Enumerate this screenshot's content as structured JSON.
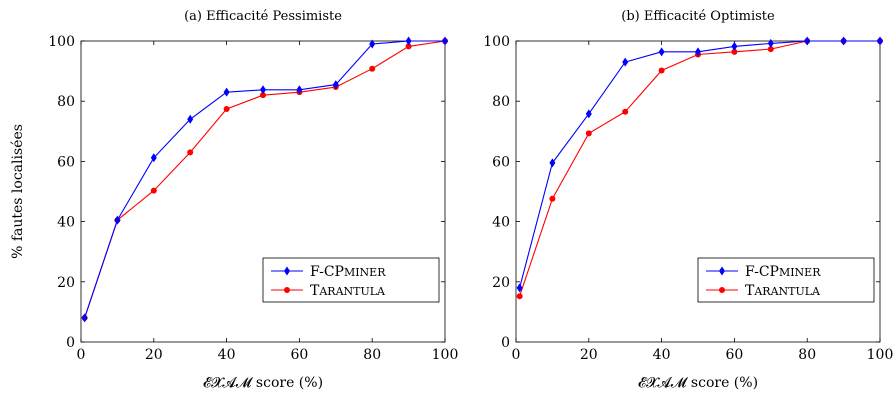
{
  "chart_data": [
    {
      "type": "line",
      "title": "(a) Efficacité Pessimiste",
      "xlabel": "𝓔𝓧𝓐𝓜 score (%)",
      "ylabel": "% fautes localisées",
      "xlim": [
        0,
        100
      ],
      "ylim": [
        0,
        100
      ],
      "xticks": [
        "0",
        "20",
        "40",
        "60",
        "80",
        "100"
      ],
      "yticks": [
        "0",
        "20",
        "40",
        "60",
        "80",
        "100"
      ],
      "x": [
        1,
        10,
        20,
        30,
        40,
        50,
        60,
        70,
        80,
        90,
        100
      ],
      "legend_position": "bottom-right",
      "series": [
        {
          "name": "F-CPminer",
          "color": "#0000ff",
          "marker": "diamond",
          "values": [
            8,
            40.5,
            61.2,
            74,
            83,
            83.8,
            83.8,
            85.5,
            99,
            100,
            100
          ]
        },
        {
          "name": "Tarantula",
          "color": "#ff0000",
          "marker": "circle",
          "values": [
            8,
            40.5,
            50.3,
            63,
            77.4,
            82,
            83,
            84.7,
            90.8,
            98.2,
            100
          ]
        }
      ]
    },
    {
      "type": "line",
      "title": "(b) Efficacité Optimiste",
      "xlabel": "𝓔𝓧𝓐𝓜 score (%)",
      "ylabel": "",
      "xlim": [
        0,
        100
      ],
      "ylim": [
        0,
        100
      ],
      "xticks": [
        "0",
        "20",
        "40",
        "60",
        "80",
        "100"
      ],
      "yticks": [
        "0",
        "20",
        "40",
        "60",
        "80",
        "100"
      ],
      "x": [
        1,
        10,
        20,
        30,
        40,
        50,
        60,
        70,
        80,
        90,
        100
      ],
      "legend_position": "bottom-right",
      "series": [
        {
          "name": "F-CPminer",
          "color": "#0000ff",
          "marker": "diamond",
          "values": [
            18,
            59.5,
            75.8,
            93,
            96.4,
            96.4,
            98.2,
            99.2,
            100,
            100,
            100
          ]
        },
        {
          "name": "Tarantula",
          "color": "#ff0000",
          "marker": "circle",
          "values": [
            15.2,
            47.6,
            69.3,
            76.5,
            90.2,
            95.5,
            96.4,
            97.3,
            100,
            100,
            100
          ]
        }
      ]
    }
  ]
}
